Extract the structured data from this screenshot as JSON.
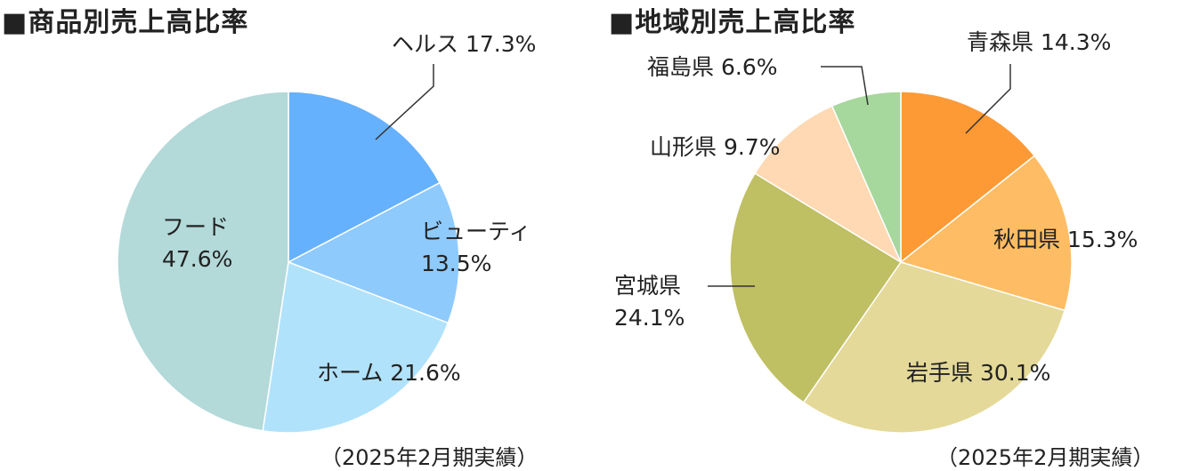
{
  "chart_data": [
    {
      "type": "pie",
      "title": "■商品別売上高比率",
      "note": "（2025年2月期実績）",
      "start": "top",
      "direction": "clockwise",
      "slices": [
        {
          "label": "ヘルス",
          "value": 17.3,
          "display": "17.3%",
          "color": "#66b1fe"
        },
        {
          "label": "ビューティ",
          "value": 13.5,
          "display": "13.5%",
          "color": "#8fcafd"
        },
        {
          "label": "ホーム",
          "value": 21.6,
          "display": "21.6%",
          "color": "#b1e2fb"
        },
        {
          "label": "フード",
          "value": 47.6,
          "display": "47.6%",
          "color": "#b3d9d9"
        }
      ]
    },
    {
      "type": "pie",
      "title": "■地域別売上高比率",
      "note": "（2025年2月期実績）",
      "start": "top",
      "direction": "clockwise",
      "slices": [
        {
          "label": "青森県",
          "value": 14.3,
          "display": "14.3%",
          "color": "#fe9a36"
        },
        {
          "label": "秋田県",
          "value": 15.3,
          "display": "15.3%",
          "color": "#febd64"
        },
        {
          "label": "岩手県",
          "value": 30.1,
          "display": "30.1%",
          "color": "#e4d998"
        },
        {
          "label": "宮城県",
          "value": 24.1,
          "display": "24.1%",
          "color": "#bfbf63"
        },
        {
          "label": "山形県",
          "value": 9.7,
          "display": "9.7%",
          "color": "#fed9b3"
        },
        {
          "label": "福島県",
          "value": 6.6,
          "display": "6.6%",
          "color": "#a6d79c"
        }
      ]
    }
  ]
}
